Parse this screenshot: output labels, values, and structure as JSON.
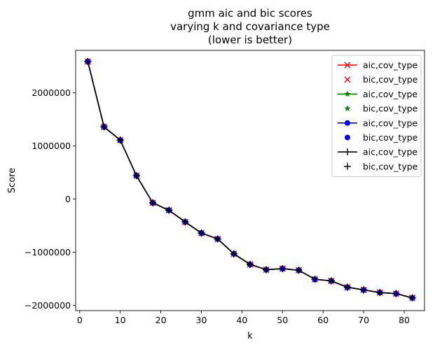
{
  "chart_data": {
    "type": "line",
    "title": [
      "gmm aic and bic scores",
      "varying k and covariance type",
      "(lower is better)"
    ],
    "xlabel": "k",
    "ylabel": "Score",
    "xlim": [
      -1,
      85
    ],
    "ylim": [
      -2100000,
      2800000
    ],
    "xticks": [
      0,
      10,
      20,
      30,
      40,
      50,
      60,
      70,
      80
    ],
    "yticks": [
      -2000000,
      -1000000,
      0,
      1000000,
      2000000
    ],
    "ytick_labels": [
      "−2000000",
      "−1000000",
      "0",
      "1000000",
      "2000000"
    ],
    "legend_position": "top-right",
    "x": [
      2,
      6,
      10,
      14,
      18,
      22,
      26,
      30,
      34,
      38,
      42,
      46,
      50,
      54,
      58,
      62,
      66,
      70,
      74,
      78,
      82
    ],
    "series": [
      {
        "name": "aic,cov_type",
        "color": "#ff0000",
        "marker": "x",
        "line": true,
        "values": [
          2590000,
          1360000,
          1110000,
          440000,
          -70000,
          -210000,
          -430000,
          -640000,
          -750000,
          -1030000,
          -1230000,
          -1330000,
          -1310000,
          -1340000,
          -1510000,
          -1540000,
          -1660000,
          -1710000,
          -1760000,
          -1780000,
          -1860000
        ]
      },
      {
        "name": "bic,cov_type",
        "color": "#ff0000",
        "marker": "x",
        "line": false,
        "values": [
          2590000,
          1360000,
          1110000,
          440000,
          -70000,
          -210000,
          -430000,
          -640000,
          -750000,
          -1030000,
          -1230000,
          -1330000,
          -1310000,
          -1340000,
          -1510000,
          -1540000,
          -1660000,
          -1710000,
          -1760000,
          -1780000,
          -1860000
        ]
      },
      {
        "name": "aic,cov_type",
        "color": "#008000",
        "marker": "star",
        "line": true,
        "values": [
          2590000,
          1360000,
          1110000,
          440000,
          -70000,
          -210000,
          -430000,
          -640000,
          -750000,
          -1030000,
          -1230000,
          -1330000,
          -1310000,
          -1340000,
          -1510000,
          -1540000,
          -1660000,
          -1710000,
          -1760000,
          -1780000,
          -1860000
        ]
      },
      {
        "name": "bic,cov_type",
        "color": "#008000",
        "marker": "star",
        "line": false,
        "values": [
          2590000,
          1360000,
          1110000,
          440000,
          -70000,
          -210000,
          -430000,
          -640000,
          -750000,
          -1030000,
          -1230000,
          -1330000,
          -1310000,
          -1340000,
          -1510000,
          -1540000,
          -1660000,
          -1710000,
          -1760000,
          -1780000,
          -1860000
        ]
      },
      {
        "name": "aic,cov_type",
        "color": "#0000ff",
        "marker": "circle",
        "line": true,
        "values": [
          2590000,
          1360000,
          1110000,
          440000,
          -70000,
          -210000,
          -430000,
          -640000,
          -750000,
          -1030000,
          -1230000,
          -1330000,
          -1310000,
          -1340000,
          -1510000,
          -1540000,
          -1660000,
          -1710000,
          -1760000,
          -1780000,
          -1860000
        ]
      },
      {
        "name": "bic,cov_type",
        "color": "#0000ff",
        "marker": "circle",
        "line": false,
        "values": [
          2590000,
          1360000,
          1110000,
          440000,
          -70000,
          -210000,
          -430000,
          -640000,
          -750000,
          -1030000,
          -1230000,
          -1330000,
          -1310000,
          -1340000,
          -1510000,
          -1540000,
          -1660000,
          -1710000,
          -1760000,
          -1780000,
          -1860000
        ]
      },
      {
        "name": "aic,cov_type",
        "color": "#000000",
        "marker": "plus",
        "line": true,
        "values": [
          2590000,
          1360000,
          1110000,
          440000,
          -70000,
          -210000,
          -430000,
          -640000,
          -750000,
          -1030000,
          -1230000,
          -1330000,
          -1310000,
          -1340000,
          -1510000,
          -1540000,
          -1660000,
          -1710000,
          -1760000,
          -1780000,
          -1860000
        ]
      },
      {
        "name": "bic,cov_type",
        "color": "#000000",
        "marker": "plus",
        "line": false,
        "values": [
          2590000,
          1360000,
          1110000,
          440000,
          -70000,
          -210000,
          -430000,
          -640000,
          -750000,
          -1030000,
          -1230000,
          -1330000,
          -1310000,
          -1340000,
          -1510000,
          -1540000,
          -1660000,
          -1710000,
          -1760000,
          -1780000,
          -1860000
        ]
      }
    ]
  }
}
